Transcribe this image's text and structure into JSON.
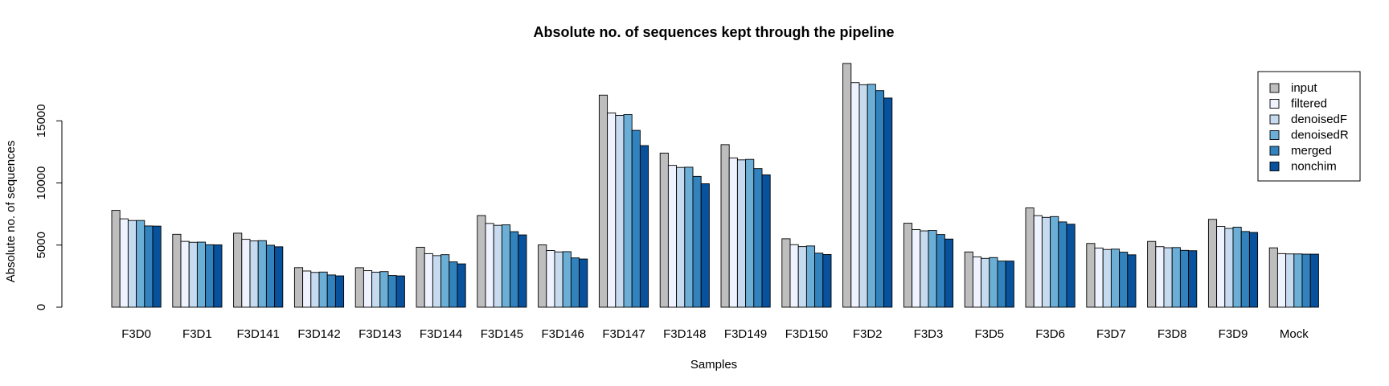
{
  "chart_data": {
    "type": "bar",
    "title": "Absolute no. of sequences kept through the pipeline",
    "xlabel": "Samples",
    "ylabel": "Absolute no. of sequences",
    "ylim": [
      0,
      20000
    ],
    "yticks": [
      0,
      5000,
      10000,
      15000
    ],
    "ytick_labels": [
      "0",
      "5000",
      "10000",
      "15000"
    ],
    "grid": false,
    "legend_position": "top-right",
    "categories": [
      "F3D0",
      "F3D1",
      "F3D141",
      "F3D142",
      "F3D143",
      "F3D144",
      "F3D145",
      "F3D146",
      "F3D147",
      "F3D148",
      "F3D149",
      "F3D150",
      "F3D2",
      "F3D3",
      "F3D5",
      "F3D6",
      "F3D7",
      "F3D8",
      "F3D9",
      "Mock"
    ],
    "series": [
      {
        "name": "input",
        "color": "#bebebe",
        "values": [
          7793,
          5869,
          5958,
          3183,
          3178,
          4827,
          7377,
          5021,
          17070,
          12405,
          13083,
          5509,
          19620,
          6758,
          4448,
          7989,
          5129,
          5294,
          7070,
          4779
        ]
      },
      {
        "name": "filtered",
        "color": "#eff3ff",
        "values": [
          7113,
          5299,
          5463,
          2914,
          2941,
          4312,
          6741,
          4560,
          15637,
          11413,
          12017,
          5032,
          18075,
          6250,
          4052,
          7369,
          4765,
          4871,
          6504,
          4314
        ]
      },
      {
        "name": "denoisedF",
        "color": "#c6dbef",
        "values": [
          6976,
          5227,
          5331,
          2799,
          2822,
          4151,
          6592,
          4450,
          15433,
          11250,
          11857,
          4878,
          17907,
          6145,
          3930,
          7231,
          4646,
          4786,
          6341,
          4287
        ]
      },
      {
        "name": "denoisedR",
        "color": "#6baed6",
        "values": [
          6979,
          5239,
          5357,
          2830,
          2867,
          4228,
          6627,
          4470,
          15506,
          11268,
          11898,
          4929,
          17939,
          6176,
          3994,
          7294,
          4673,
          4802,
          6442,
          4286
        ]
      },
      {
        "name": "merged",
        "color": "#3182bd",
        "values": [
          6540,
          5028,
          4986,
          2595,
          2552,
          3646,
          6079,
          3968,
          14233,
          10528,
          11154,
          4349,
          17431,
          5850,
          3713,
          6865,
          4428,
          4576,
          6092,
          4269
        ]
      },
      {
        "name": "nonchim",
        "color": "#08519c",
        "values": [
          6528,
          5017,
          4863,
          2521,
          2518,
          3488,
          5820,
          3879,
          13006,
          9935,
          10653,
          4240,
          16835,
          5486,
          3713,
          6678,
          4217,
          4547,
          6015,
          4269
        ]
      }
    ]
  }
}
